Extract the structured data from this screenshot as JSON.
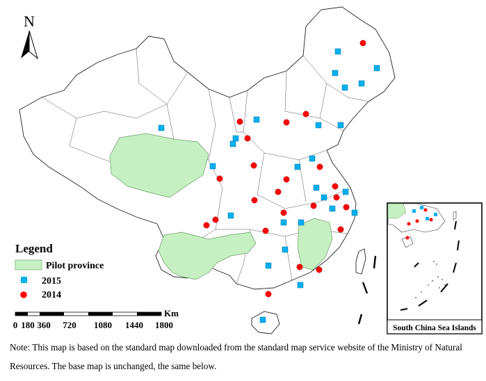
{
  "north_arrow": {
    "label": "N",
    "icon": "north-arrow-icon"
  },
  "legend": {
    "title": "Legend",
    "items": [
      {
        "label": "Pilot province",
        "symbol": "green-fill",
        "color": "#c6f0c2"
      },
      {
        "label": "2015",
        "symbol": "blue-square",
        "color": "#00b0f0"
      },
      {
        "label": "2014",
        "symbol": "red-circle",
        "color": "#ff0000"
      }
    ]
  },
  "scale_bar": {
    "unit": "Km",
    "ticks": [
      "0",
      "180",
      "360",
      "720",
      "1080",
      "1440",
      "1800"
    ]
  },
  "inset": {
    "title": "South China Sea Islands"
  },
  "note": "Note: This map is based on the standard map downloaded from the standard map service website of the Ministry of Natural Resources. The base map is unchanged, the same below.",
  "colors": {
    "pilot": "#c6f0c2",
    "pilot_border": "#6a9a66",
    "pilot_2015": "#00b0f0",
    "pilot_2014": "#ff0000"
  }
}
